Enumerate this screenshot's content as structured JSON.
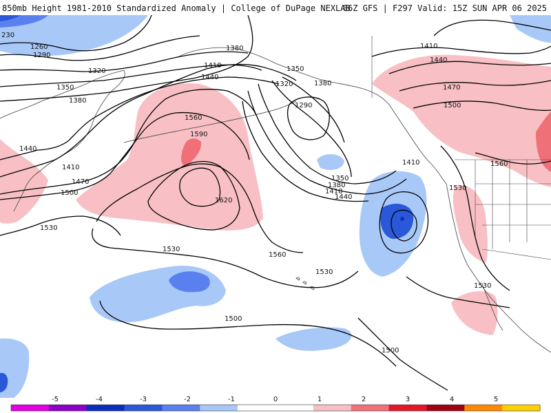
{
  "header": {
    "title_left": "850mb Height 1981-2010 Standardized Anomaly | College of DuPage NEXLAB",
    "title_right": "06Z GFS | F297 Valid: 15Z SUN APR 06 2025"
  },
  "colors": {
    "anomaly_scale": [
      "#e100e1",
      "#8a00c8",
      "#0a2fbf",
      "#2a58d8",
      "#5a80f0",
      "#a8c8f8",
      "#ffffff",
      "#ffffff",
      "#f8c0c4",
      "#f07078",
      "#e01828",
      "#a00010",
      "#ff8800",
      "#ffd000"
    ],
    "contour": "#000000",
    "coastline": "#404040"
  },
  "colorbar": {
    "ticks": [
      "-5",
      "-4",
      "-3",
      "-2",
      "-1",
      "0",
      "1",
      "2",
      "3",
      "4",
      "5"
    ]
  },
  "contour_labels": [
    "230",
    "1260",
    "1290",
    "1320",
    "1350",
    "1380",
    "1410",
    "1440",
    "1470",
    "1500",
    "1530",
    "1560",
    "1590",
    "1620",
    "1380",
    "1410",
    "1440",
    "1350",
    "1320",
    "1290",
    "1380",
    "1350",
    "1380",
    "1410",
    "1440",
    "1410",
    "1440",
    "1470",
    "1500",
    "1530",
    "1560",
    "1530",
    "1500",
    "1530",
    "1560",
    "1530",
    "1500",
    "1410",
    "1440",
    "1470",
    "1500",
    "1530",
    "1410",
    "1440",
    "1470",
    "1500"
  ]
}
